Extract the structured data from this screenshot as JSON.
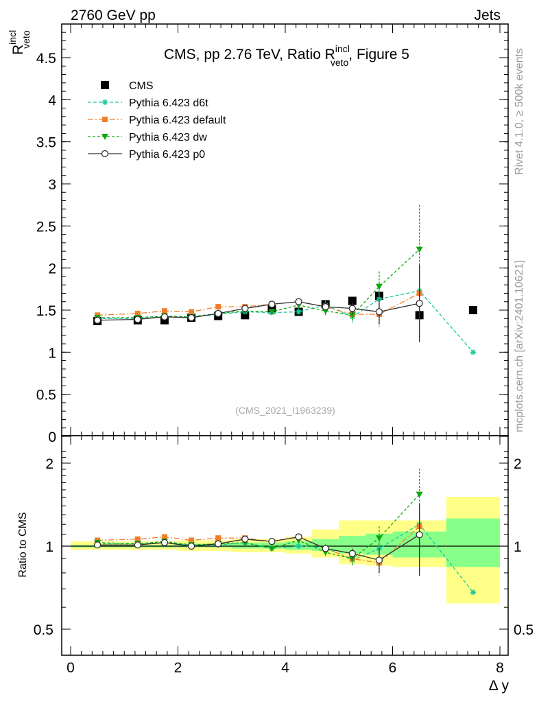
{
  "header": {
    "left": "2760 GeV pp",
    "right": "Jets"
  },
  "side": {
    "rivet": "Rivet 4.1.0, ≥ 500k events",
    "mcplots": "mcplots.cern.ch [arXiv:2401.10621]"
  },
  "colors": {
    "cms": "#000000",
    "d6t": "#19c99c",
    "default": "#f07f2b",
    "dw": "#10a810",
    "p0": "#303030",
    "band_outer": "#ffff88",
    "band_inner": "#88ff88"
  },
  "chart_data": [
    {
      "type": "scatter",
      "title_parts": {
        "main": "CMS, pp 2.76 TeV, Ratio R",
        "sup": "incl",
        "sub": "veto",
        "tail": ", Figure 5"
      },
      "ylabel_parts": {
        "main": "R",
        "sup": "incl",
        "sub": "veto"
      },
      "watermark": "(CMS_2021_I1963239)",
      "xlim": [
        -0.2,
        8.0
      ],
      "ylim": [
        0,
        4.9
      ],
      "yticks": [
        "0",
        "0.5",
        "1",
        "1.5",
        "2",
        "2.5",
        "3",
        "3.5",
        "4",
        "4.5"
      ],
      "ytick_values": [
        0,
        0.5,
        1,
        1.5,
        2,
        2.5,
        3,
        3.5,
        4,
        4.5
      ],
      "legend_position": "top-left",
      "series": [
        {
          "name": "CMS",
          "key": "cms",
          "x": [
            0.5,
            1.25,
            1.75,
            2.25,
            2.75,
            3.25,
            3.75,
            4.25,
            4.75,
            5.25,
            5.75,
            6.5,
            7.5
          ],
          "y": [
            1.37,
            1.38,
            1.38,
            1.41,
            1.43,
            1.44,
            1.51,
            1.48,
            1.57,
            1.61,
            1.67,
            1.44,
            1.5
          ]
        },
        {
          "name": "Pythia 6.423 d6t",
          "key": "d6t",
          "x": [
            0.5,
            1.25,
            1.75,
            2.25,
            2.75,
            3.25,
            3.75,
            4.25,
            4.75,
            5.25,
            5.75,
            6.5,
            7.5
          ],
          "y": [
            1.4,
            1.4,
            1.42,
            1.42,
            1.45,
            1.48,
            1.47,
            1.48,
            1.56,
            1.42,
            1.63,
            1.73,
            1.0
          ],
          "err": [
            0.02,
            0.02,
            0.02,
            0.02,
            0.03,
            0.03,
            0.03,
            0.04,
            0.05,
            0.07,
            0.1,
            0.2,
            0
          ]
        },
        {
          "name": "Pythia 6.423 default",
          "key": "default",
          "x": [
            0.5,
            1.25,
            1.75,
            2.25,
            2.75,
            3.25,
            3.75,
            4.25,
            4.75,
            5.25,
            5.75,
            6.5
          ],
          "y": [
            1.44,
            1.46,
            1.49,
            1.48,
            1.54,
            1.54,
            1.57,
            1.6,
            1.54,
            1.45,
            1.45,
            1.7
          ],
          "err": [
            0.02,
            0.02,
            0.02,
            0.02,
            0.03,
            0.03,
            0.03,
            0.04,
            0.05,
            0.07,
            0.15,
            0.25
          ]
        },
        {
          "name": "Pythia 6.423 dw",
          "key": "dw",
          "x": [
            0.5,
            1.25,
            1.75,
            2.25,
            2.75,
            3.25,
            3.75,
            4.25,
            4.75,
            5.25,
            5.75,
            6.5
          ],
          "y": [
            1.41,
            1.41,
            1.43,
            1.42,
            1.46,
            1.49,
            1.48,
            1.56,
            1.49,
            1.44,
            1.78,
            2.22
          ],
          "err": [
            0.02,
            0.02,
            0.02,
            0.02,
            0.03,
            0.03,
            0.03,
            0.04,
            0.05,
            0.08,
            0.18,
            0.53
          ]
        },
        {
          "name": "Pythia 6.423 p0",
          "key": "p0",
          "x": [
            0.5,
            1.25,
            1.75,
            2.25,
            2.75,
            3.25,
            3.75,
            4.25,
            4.75,
            5.25,
            5.75,
            6.5
          ],
          "y": [
            1.38,
            1.39,
            1.42,
            1.41,
            1.46,
            1.52,
            1.57,
            1.6,
            1.54,
            1.52,
            1.48,
            1.58
          ],
          "err": [
            0.02,
            0.02,
            0.02,
            0.02,
            0.03,
            0.03,
            0.03,
            0.04,
            0.05,
            0.07,
            0.15,
            0.46
          ]
        }
      ]
    },
    {
      "type": "scatter",
      "ylabel": "Ratio to CMS",
      "xlabel": "Δ y",
      "xlim": [
        -0.2,
        8.0
      ],
      "ylim": [
        0.36,
        2.3
      ],
      "yticks": [
        "0.5",
        "1",
        "2"
      ],
      "ytick_values": [
        0.5,
        1,
        2
      ],
      "xticks": [
        "0",
        "2",
        "4",
        "6",
        "8"
      ],
      "xtick_values": [
        0,
        2,
        4,
        6,
        8
      ],
      "bands": {
        "edges": [
          0,
          1,
          1.5,
          2,
          2.5,
          3,
          3.5,
          4,
          4.5,
          5,
          5.5,
          6,
          7,
          8
        ],
        "inner_lo": [
          0.99,
          0.99,
          0.99,
          0.99,
          0.99,
          0.98,
          0.98,
          0.97,
          0.96,
          0.94,
          0.93,
          0.91,
          0.84
        ],
        "inner_hi": [
          1.01,
          1.01,
          1.01,
          1.02,
          1.02,
          1.03,
          1.03,
          1.04,
          1.06,
          1.09,
          1.11,
          1.13,
          1.26
        ],
        "outer_lo": [
          0.97,
          0.97,
          0.97,
          0.96,
          0.96,
          0.95,
          0.95,
          0.94,
          0.91,
          0.86,
          0.85,
          0.84,
          0.62
        ],
        "outer_hi": [
          1.04,
          1.04,
          1.04,
          1.05,
          1.05,
          1.06,
          1.06,
          1.08,
          1.15,
          1.24,
          1.24,
          1.24,
          1.51
        ]
      },
      "series": [
        {
          "name": "Pythia 6.423 d6t",
          "key": "d6t",
          "x": [
            0.5,
            1.25,
            1.75,
            2.25,
            2.75,
            3.25,
            3.75,
            4.25,
            4.75,
            5.25,
            5.75,
            6.5,
            7.5
          ],
          "y": [
            1.02,
            1.02,
            1.03,
            1.01,
            1.01,
            1.03,
            0.98,
            1.0,
            0.99,
            0.89,
            0.98,
            1.2,
            0.68
          ],
          "err": [
            0.015,
            0.015,
            0.015,
            0.015,
            0.02,
            0.02,
            0.02,
            0.03,
            0.03,
            0.04,
            0.06,
            0.14,
            0
          ]
        },
        {
          "name": "Pythia 6.423 default",
          "key": "default",
          "x": [
            0.5,
            1.25,
            1.75,
            2.25,
            2.75,
            3.25,
            3.75,
            4.25,
            4.75,
            5.25,
            5.75,
            6.5
          ],
          "y": [
            1.05,
            1.06,
            1.08,
            1.05,
            1.07,
            1.07,
            1.04,
            1.08,
            0.98,
            0.9,
            0.87,
            1.18
          ],
          "err": [
            0.015,
            0.015,
            0.015,
            0.015,
            0.02,
            0.02,
            0.02,
            0.03,
            0.03,
            0.04,
            0.09,
            0.17
          ]
        },
        {
          "name": "Pythia 6.423 dw",
          "key": "dw",
          "x": [
            0.5,
            1.25,
            1.75,
            2.25,
            2.75,
            3.25,
            3.75,
            4.25,
            4.75,
            5.25,
            5.75,
            6.5
          ],
          "y": [
            1.03,
            1.02,
            1.04,
            1.01,
            1.02,
            1.03,
            0.98,
            1.05,
            0.95,
            0.9,
            1.07,
            1.54
          ],
          "err": [
            0.015,
            0.015,
            0.015,
            0.015,
            0.02,
            0.02,
            0.02,
            0.03,
            0.03,
            0.05,
            0.11,
            0.37
          ]
        },
        {
          "name": "Pythia 6.423 p0",
          "key": "p0",
          "x": [
            0.5,
            1.25,
            1.75,
            2.25,
            2.75,
            3.25,
            3.75,
            4.25,
            4.75,
            5.25,
            5.75,
            6.5
          ],
          "y": [
            1.01,
            1.01,
            1.03,
            1.0,
            1.02,
            1.06,
            1.04,
            1.08,
            0.98,
            0.94,
            0.89,
            1.1
          ],
          "err": [
            0.015,
            0.015,
            0.015,
            0.015,
            0.02,
            0.02,
            0.02,
            0.03,
            0.03,
            0.04,
            0.09,
            0.32
          ]
        }
      ]
    }
  ]
}
